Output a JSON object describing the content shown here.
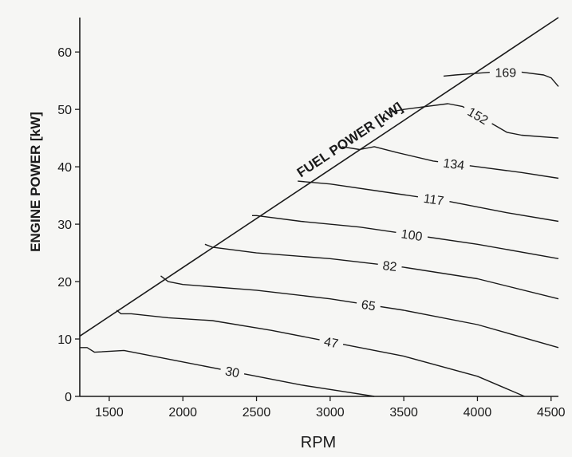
{
  "chart_data": {
    "type": "line",
    "xlabel": "RPM",
    "ylabel": "ENGINE POWER  [kW]",
    "xlim": [
      1300,
      4550
    ],
    "ylim": [
      0,
      66
    ],
    "x_ticks": [
      "1500",
      "2000",
      "2500",
      "3000",
      "3500",
      "4000",
      "4500"
    ],
    "y_ticks": [
      "0",
      "10",
      "20",
      "30",
      "40",
      "50",
      "60"
    ],
    "grid": false,
    "legend": "none",
    "fuel_power_line": {
      "label": "FUEL POWER  [kW]",
      "x": [
        1300,
        4550
      ],
      "y": [
        10.5,
        66
      ]
    },
    "series": [
      {
        "name": "30",
        "x": [
          1300,
          1350,
          1400,
          1600,
          2000,
          2400,
          2800,
          3100,
          3300
        ],
        "y": [
          8.5,
          8.5,
          7.7,
          8.0,
          6.0,
          4.0,
          2.0,
          0.8,
          0
        ]
      },
      {
        "name": "47",
        "x": [
          1550,
          1580,
          1650,
          1900,
          2200,
          2600,
          3000,
          3500,
          4000,
          4320
        ],
        "y": [
          15,
          14.4,
          14.4,
          13.7,
          13.2,
          11.5,
          9.5,
          7.0,
          3.5,
          0
        ]
      },
      {
        "name": "65",
        "x": [
          1850,
          1900,
          2000,
          2500,
          3000,
          3500,
          4000,
          4550
        ],
        "y": [
          21,
          20,
          19.5,
          18.5,
          17.0,
          15.0,
          12.5,
          8.5
        ]
      },
      {
        "name": "82",
        "x": [
          2150,
          2200,
          2500,
          3000,
          3500,
          4000,
          4550
        ],
        "y": [
          26.5,
          26,
          25,
          24,
          22.5,
          20.5,
          17.0
        ]
      },
      {
        "name": "100",
        "x": [
          2470,
          2500,
          2800,
          3200,
          3600,
          4000,
          4550
        ],
        "y": [
          31.5,
          31.5,
          30.5,
          29.5,
          28,
          26.5,
          24
        ]
      },
      {
        "name": "117",
        "x": [
          2780,
          3000,
          3400,
          3800,
          4200,
          4550
        ],
        "y": [
          37.5,
          37,
          35.5,
          34,
          32,
          30.5
        ]
      },
      {
        "name": "134",
        "x": [
          3080,
          3200,
          3300,
          3450,
          3700,
          4000,
          4300,
          4550
        ],
        "y": [
          43.5,
          43,
          43.5,
          42.5,
          41,
          40,
          39,
          38
        ]
      },
      {
        "name": "152",
        "x": [
          3400,
          3500,
          3650,
          3800,
          3900,
          4000,
          4100,
          4200,
          4300,
          4550
        ],
        "y": [
          49.5,
          50,
          50.5,
          51,
          50.5,
          49,
          47.5,
          46,
          45.5,
          45
        ]
      },
      {
        "name": "169",
        "x": [
          3770,
          3850,
          4000,
          4100,
          4300,
          4450,
          4500,
          4550
        ],
        "y": [
          55.8,
          56,
          56.3,
          56.5,
          56.5,
          56,
          55.5,
          54
        ]
      }
    ]
  }
}
